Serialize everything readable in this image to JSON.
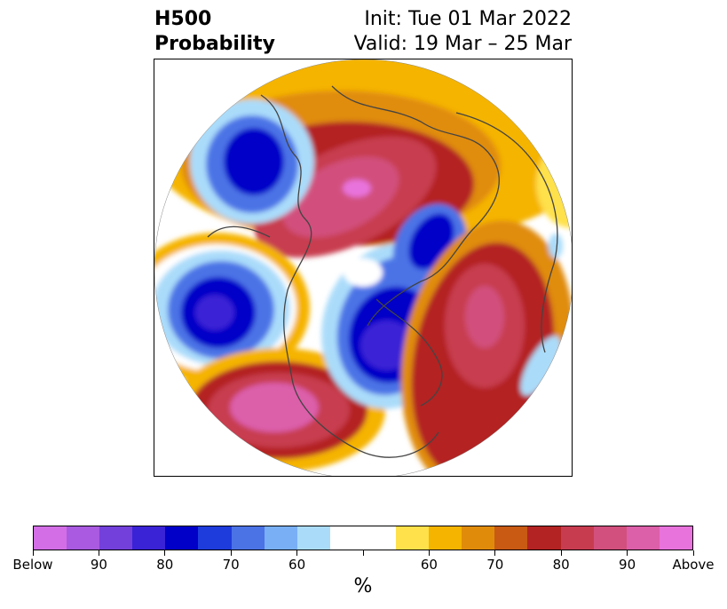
{
  "header": {
    "variable": "H500",
    "product": "Probability",
    "init": "Init: Tue 01 Mar 2022",
    "valid": "Valid: 19 Mar – 25 Mar"
  },
  "colorbar": {
    "colors": [
      "#d36ee6",
      "#a95ae0",
      "#7340db",
      "#3a23d6",
      "#0000c8",
      "#1e3cdc",
      "#4b73e6",
      "#78aff5",
      "#aadcfa",
      "#ffffff",
      "#ffffff",
      "#ffe14b",
      "#f5b400",
      "#e08c0a",
      "#c85a14",
      "#b42323",
      "#c83c50",
      "#d2507d",
      "#dc5faa",
      "#e873dc"
    ],
    "tick_labels": [
      "Below",
      "90",
      "80",
      "70",
      "60",
      "",
      "60",
      "70",
      "80",
      "90",
      "Above"
    ],
    "units": "%"
  }
}
